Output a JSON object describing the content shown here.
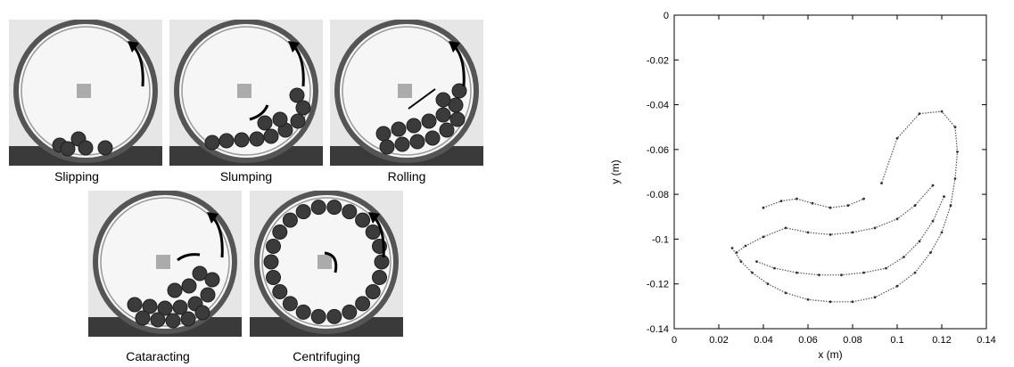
{
  "figure": {
    "panels": [
      {
        "label": "Slipping",
        "balls": 4
      },
      {
        "label": "Slumping",
        "balls": 11
      },
      {
        "label": "Rolling",
        "balls": 14
      },
      {
        "label": "Cataracting",
        "balls": 15
      },
      {
        "label": "Centrifuging",
        "balls": 22
      }
    ],
    "icons": [
      "rotation-arrow-icon",
      "motion-arrow-icon"
    ]
  },
  "chart_data": {
    "type": "scatter",
    "title": "",
    "xlabel": "x (m)",
    "ylabel": "y (m)",
    "xlim": [
      0,
      0.14
    ],
    "ylim": [
      -0.14,
      0
    ],
    "xticks": [
      "0",
      "0.02",
      "0.04",
      "0.06",
      "0.08",
      "0.1",
      "0.12",
      "0.14"
    ],
    "yticks": [
      "0",
      "-0.02",
      "-0.04",
      "-0.06",
      "-0.08",
      "-0.1",
      "-0.12",
      "-0.14"
    ],
    "grid": false,
    "legend": "none",
    "series": [
      {
        "values": [
          [
            0.028,
            -0.106
          ],
          [
            0.032,
            -0.103
          ],
          [
            0.04,
            -0.099
          ],
          [
            0.05,
            -0.095
          ],
          [
            0.06,
            -0.097
          ],
          [
            0.07,
            -0.098
          ],
          [
            0.08,
            -0.097
          ],
          [
            0.09,
            -0.095
          ],
          [
            0.1,
            -0.091
          ],
          [
            0.108,
            -0.085
          ],
          [
            0.116,
            -0.076
          ]
        ]
      },
      {
        "values": [
          [
            0.037,
            -0.11
          ],
          [
            0.045,
            -0.113
          ],
          [
            0.055,
            -0.115
          ],
          [
            0.065,
            -0.116
          ],
          [
            0.075,
            -0.116
          ],
          [
            0.085,
            -0.115
          ],
          [
            0.095,
            -0.113
          ],
          [
            0.103,
            -0.108
          ],
          [
            0.11,
            -0.101
          ],
          [
            0.116,
            -0.092
          ],
          [
            0.121,
            -0.081
          ]
        ]
      },
      {
        "values": [
          [
            0.026,
            -0.104
          ],
          [
            0.03,
            -0.11
          ],
          [
            0.035,
            -0.115
          ],
          [
            0.042,
            -0.12
          ],
          [
            0.05,
            -0.124
          ],
          [
            0.06,
            -0.127
          ],
          [
            0.07,
            -0.128
          ],
          [
            0.08,
            -0.128
          ],
          [
            0.09,
            -0.126
          ],
          [
            0.1,
            -0.121
          ],
          [
            0.108,
            -0.115
          ],
          [
            0.115,
            -0.106
          ],
          [
            0.12,
            -0.097
          ],
          [
            0.124,
            -0.085
          ],
          [
            0.126,
            -0.073
          ],
          [
            0.127,
            -0.061
          ],
          [
            0.126,
            -0.05
          ],
          [
            0.12,
            -0.043
          ],
          [
            0.11,
            -0.044
          ],
          [
            0.1,
            -0.055
          ],
          [
            0.093,
            -0.075
          ]
        ]
      },
      {
        "values": [
          [
            0.04,
            -0.086
          ],
          [
            0.048,
            -0.083
          ],
          [
            0.055,
            -0.082
          ],
          [
            0.062,
            -0.084
          ],
          [
            0.07,
            -0.086
          ],
          [
            0.078,
            -0.085
          ],
          [
            0.085,
            -0.082
          ]
        ]
      }
    ]
  }
}
